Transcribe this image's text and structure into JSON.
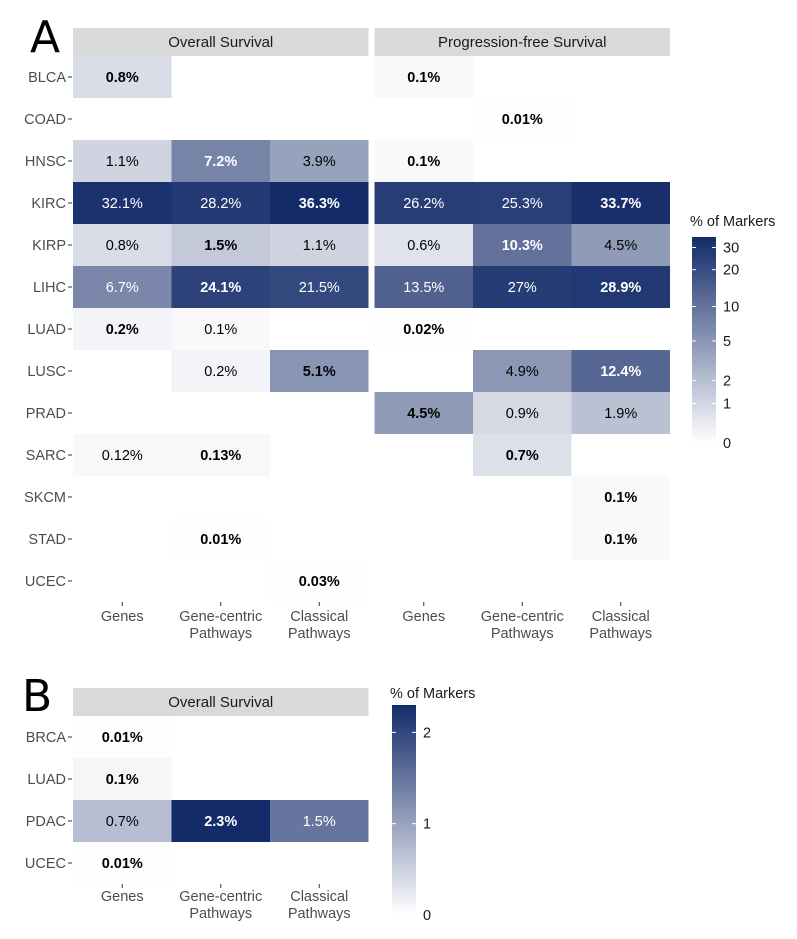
{
  "chart_data": [
    {
      "type": "heatmap",
      "panel": "A",
      "facets": [
        "Overall Survival",
        "Progression-free Survival"
      ],
      "rows": [
        "BLCA",
        "COAD",
        "HNSC",
        "KIRC",
        "KIRP",
        "LIHC",
        "LUAD",
        "LUSC",
        "PRAD",
        "SARC",
        "SKCM",
        "STAD",
        "UCEC"
      ],
      "columns": [
        "Genes",
        "Gene-centric Pathways",
        "Classical Pathways"
      ],
      "column_labels": [
        [
          "Genes"
        ],
        [
          "Gene-centric",
          "Pathways"
        ],
        [
          "Classical",
          "Pathways"
        ]
      ],
      "cells": [
        {
          "facet": 0,
          "row": "BLCA",
          "col": 0,
          "value": 0.8,
          "label": "0.8%",
          "bold": true
        },
        {
          "facet": 0,
          "row": "HNSC",
          "col": 0,
          "value": 1.1,
          "label": "1.1%",
          "bold": false
        },
        {
          "facet": 0,
          "row": "HNSC",
          "col": 1,
          "value": 7.2,
          "label": "7.2%",
          "bold": true
        },
        {
          "facet": 0,
          "row": "HNSC",
          "col": 2,
          "value": 3.9,
          "label": "3.9%",
          "bold": false
        },
        {
          "facet": 0,
          "row": "KIRC",
          "col": 0,
          "value": 32.1,
          "label": "32.1%",
          "bold": false
        },
        {
          "facet": 0,
          "row": "KIRC",
          "col": 1,
          "value": 28.2,
          "label": "28.2%",
          "bold": false
        },
        {
          "facet": 0,
          "row": "KIRC",
          "col": 2,
          "value": 36.3,
          "label": "36.3%",
          "bold": true
        },
        {
          "facet": 0,
          "row": "KIRP",
          "col": 0,
          "value": 0.8,
          "label": "0.8%",
          "bold": false
        },
        {
          "facet": 0,
          "row": "KIRP",
          "col": 1,
          "value": 1.5,
          "label": "1.5%",
          "bold": true
        },
        {
          "facet": 0,
          "row": "KIRP",
          "col": 2,
          "value": 1.1,
          "label": "1.1%",
          "bold": false
        },
        {
          "facet": 0,
          "row": "LIHC",
          "col": 0,
          "value": 6.7,
          "label": "6.7%",
          "bold": false
        },
        {
          "facet": 0,
          "row": "LIHC",
          "col": 1,
          "value": 24.1,
          "label": "24.1%",
          "bold": true
        },
        {
          "facet": 0,
          "row": "LIHC",
          "col": 2,
          "value": 21.5,
          "label": "21.5%",
          "bold": false
        },
        {
          "facet": 0,
          "row": "LUAD",
          "col": 0,
          "value": 0.2,
          "label": "0.2%",
          "bold": true
        },
        {
          "facet": 0,
          "row": "LUAD",
          "col": 1,
          "value": 0.1,
          "label": "0.1%",
          "bold": false
        },
        {
          "facet": 0,
          "row": "LUSC",
          "col": 1,
          "value": 0.2,
          "label": "0.2%",
          "bold": false
        },
        {
          "facet": 0,
          "row": "LUSC",
          "col": 2,
          "value": 5.1,
          "label": "5.1%",
          "bold": true
        },
        {
          "facet": 0,
          "row": "SARC",
          "col": 0,
          "value": 0.12,
          "label": "0.12%",
          "bold": false
        },
        {
          "facet": 0,
          "row": "SARC",
          "col": 1,
          "value": 0.13,
          "label": "0.13%",
          "bold": true
        },
        {
          "facet": 0,
          "row": "STAD",
          "col": 1,
          "value": 0.01,
          "label": "0.01%",
          "bold": true
        },
        {
          "facet": 0,
          "row": "UCEC",
          "col": 2,
          "value": 0.03,
          "label": "0.03%",
          "bold": true
        },
        {
          "facet": 1,
          "row": "BLCA",
          "col": 0,
          "value": 0.1,
          "label": "0.1%",
          "bold": true
        },
        {
          "facet": 1,
          "row": "COAD",
          "col": 1,
          "value": 0.01,
          "label": "0.01%",
          "bold": true
        },
        {
          "facet": 1,
          "row": "HNSC",
          "col": 0,
          "value": 0.1,
          "label": "0.1%",
          "bold": true
        },
        {
          "facet": 1,
          "row": "KIRC",
          "col": 0,
          "value": 26.2,
          "label": "26.2%",
          "bold": false
        },
        {
          "facet": 1,
          "row": "KIRC",
          "col": 1,
          "value": 25.3,
          "label": "25.3%",
          "bold": false
        },
        {
          "facet": 1,
          "row": "KIRC",
          "col": 2,
          "value": 33.7,
          "label": "33.7%",
          "bold": true
        },
        {
          "facet": 1,
          "row": "KIRP",
          "col": 0,
          "value": 0.6,
          "label": "0.6%",
          "bold": false
        },
        {
          "facet": 1,
          "row": "KIRP",
          "col": 1,
          "value": 10.3,
          "label": "10.3%",
          "bold": true
        },
        {
          "facet": 1,
          "row": "KIRP",
          "col": 2,
          "value": 4.5,
          "label": "4.5%",
          "bold": false
        },
        {
          "facet": 1,
          "row": "LIHC",
          "col": 0,
          "value": 13.5,
          "label": "13.5%",
          "bold": false
        },
        {
          "facet": 1,
          "row": "LIHC",
          "col": 1,
          "value": 27,
          "label": "27%",
          "bold": false
        },
        {
          "facet": 1,
          "row": "LIHC",
          "col": 2,
          "value": 28.9,
          "label": "28.9%",
          "bold": true
        },
        {
          "facet": 1,
          "row": "LUAD",
          "col": 0,
          "value": 0.02,
          "label": "0.02%",
          "bold": true
        },
        {
          "facet": 1,
          "row": "LUSC",
          "col": 1,
          "value": 4.9,
          "label": "4.9%",
          "bold": false
        },
        {
          "facet": 1,
          "row": "LUSC",
          "col": 2,
          "value": 12.4,
          "label": "12.4%",
          "bold": true
        },
        {
          "facet": 1,
          "row": "PRAD",
          "col": 0,
          "value": 4.5,
          "label": "4.5%",
          "bold": true
        },
        {
          "facet": 1,
          "row": "PRAD",
          "col": 1,
          "value": 0.9,
          "label": "0.9%",
          "bold": false
        },
        {
          "facet": 1,
          "row": "PRAD",
          "col": 2,
          "value": 1.9,
          "label": "1.9%",
          "bold": false
        },
        {
          "facet": 1,
          "row": "SARC",
          "col": 1,
          "value": 0.7,
          "label": "0.7%",
          "bold": true
        },
        {
          "facet": 1,
          "row": "SKCM",
          "col": 2,
          "value": 0.1,
          "label": "0.1%",
          "bold": true
        },
        {
          "facet": 1,
          "row": "STAD",
          "col": 2,
          "value": 0.1,
          "label": "0.1%",
          "bold": true
        }
      ],
      "legend": {
        "title": "% of Markers",
        "ticks": [
          0,
          1,
          2,
          5,
          10,
          20,
          30
        ],
        "range": [
          0,
          36.3
        ],
        "scale": "log1p"
      }
    },
    {
      "type": "heatmap",
      "panel": "B",
      "facets": [
        "Overall Survival"
      ],
      "rows": [
        "BRCA",
        "LUAD",
        "PDAC",
        "UCEC"
      ],
      "columns": [
        "Genes",
        "Gene-centric Pathways",
        "Classical Pathways"
      ],
      "column_labels": [
        [
          "Genes"
        ],
        [
          "Gene-centric",
          "Pathways"
        ],
        [
          "Classical",
          "Pathways"
        ]
      ],
      "cells": [
        {
          "facet": 0,
          "row": "BRCA",
          "col": 0,
          "value": 0.01,
          "label": "0.01%",
          "bold": true
        },
        {
          "facet": 0,
          "row": "LUAD",
          "col": 0,
          "value": 0.1,
          "label": "0.1%",
          "bold": true
        },
        {
          "facet": 0,
          "row": "PDAC",
          "col": 0,
          "value": 0.7,
          "label": "0.7%",
          "bold": false
        },
        {
          "facet": 0,
          "row": "PDAC",
          "col": 1,
          "value": 2.3,
          "label": "2.3%",
          "bold": true
        },
        {
          "facet": 0,
          "row": "PDAC",
          "col": 2,
          "value": 1.5,
          "label": "1.5%",
          "bold": false
        },
        {
          "facet": 0,
          "row": "UCEC",
          "col": 0,
          "value": 0.01,
          "label": "0.01%",
          "bold": true
        }
      ],
      "legend": {
        "title": "% of Markers",
        "ticks": [
          0,
          1,
          2
        ],
        "range": [
          0,
          2.3
        ],
        "scale": "linear"
      }
    }
  ],
  "colors": {
    "low": "#ffffff",
    "high": "#132b69",
    "strip": "#d9d9d9",
    "dark_text": "#000000",
    "light_text": "#ffffff"
  }
}
